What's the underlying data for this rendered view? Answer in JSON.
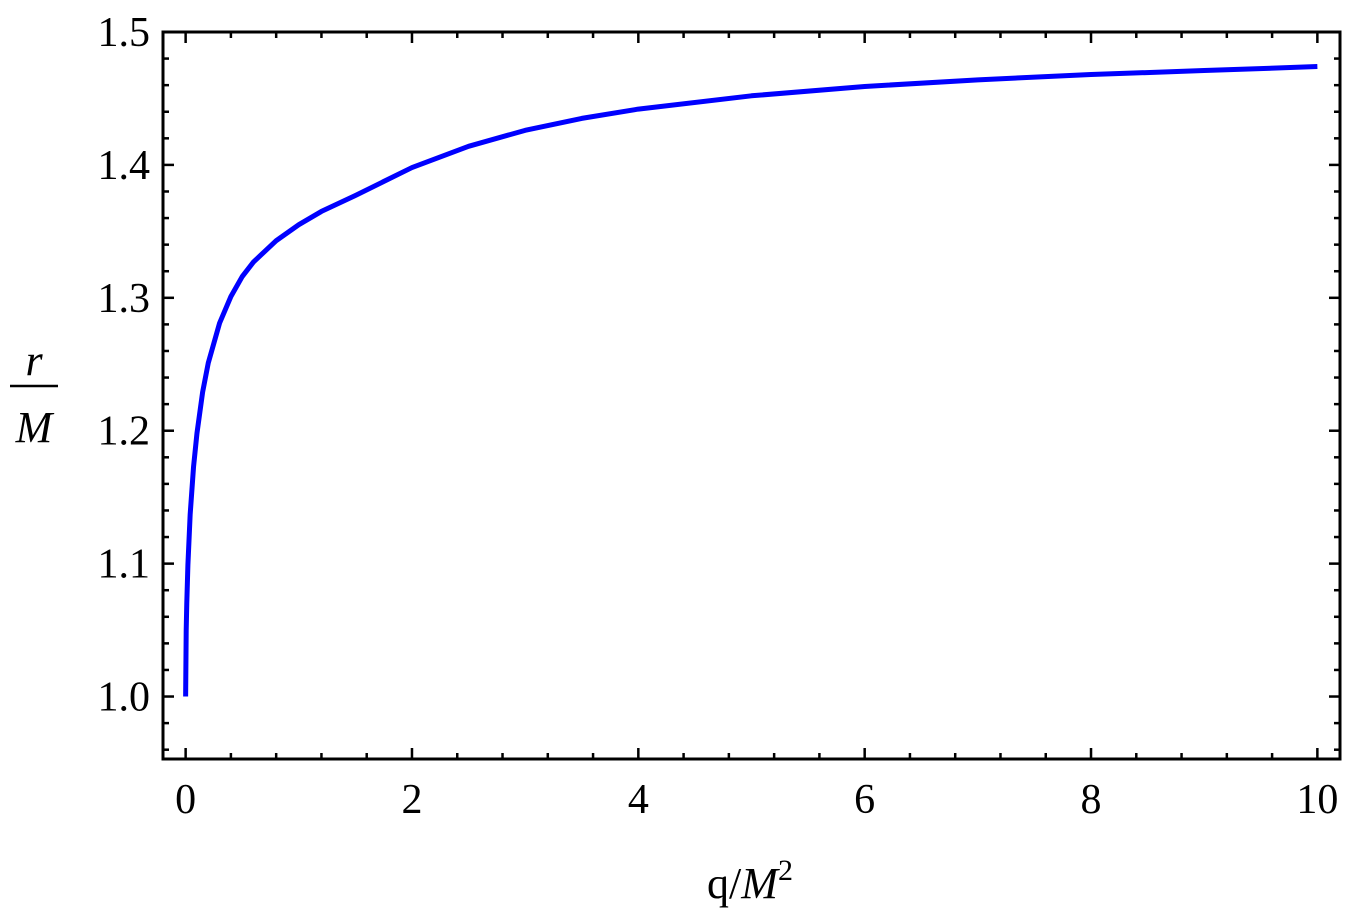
{
  "chart_data": {
    "type": "line",
    "title": "",
    "xlabel": {
      "prefix": "q/",
      "var": "M",
      "sup": "2"
    },
    "ylabel": {
      "numerator": "r",
      "denominator": "M"
    },
    "xlim": [
      -0.2,
      10.2
    ],
    "ylim": [
      0.953,
      1.5
    ],
    "xticks": [
      0,
      2,
      4,
      6,
      8,
      10
    ],
    "xtick_labels": [
      "0",
      "2",
      "4",
      "6",
      "8",
      "10"
    ],
    "yticks": [
      1.0,
      1.1,
      1.2,
      1.3,
      1.4,
      1.5
    ],
    "ytick_labels": [
      "1.0",
      "1.1",
      "1.2",
      "1.3",
      "1.4",
      "1.5"
    ],
    "grid": false,
    "series": [
      {
        "color": "#0000ff",
        "x": [
          0,
          0.005,
          0.01,
          0.02,
          0.04,
          0.07,
          0.1,
          0.15,
          0.2,
          0.3,
          0.4,
          0.5,
          0.6,
          0.8,
          1.0,
          1.2,
          1.5,
          2.0,
          2.5,
          3.0,
          3.5,
          4.0,
          5.0,
          6.0,
          7.0,
          8.0,
          9.0,
          10.0
        ],
        "y": [
          1.0,
          1.05,
          1.07,
          1.099,
          1.137,
          1.173,
          1.198,
          1.229,
          1.251,
          1.281,
          1.301,
          1.316,
          1.327,
          1.343,
          1.355,
          1.365,
          1.377,
          1.398,
          1.414,
          1.426,
          1.435,
          1.442,
          1.452,
          1.459,
          1.464,
          1.468,
          1.471,
          1.474
        ]
      }
    ]
  }
}
